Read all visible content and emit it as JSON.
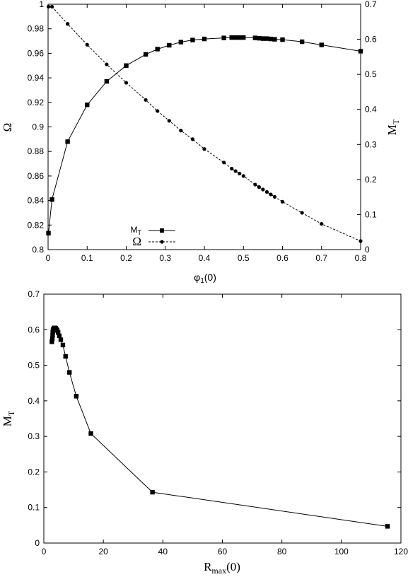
{
  "chart_data": [
    {
      "type": "line",
      "xlabel": "φ",
      "xlabel_sub": "1",
      "xlabel_suffix": "(0)",
      "ylabel": "Ω",
      "y2label": "M",
      "y2label_sub": "T",
      "xlim": [
        0,
        0.8
      ],
      "ylim": [
        0.8,
        1.0
      ],
      "y2lim": [
        0,
        0.7
      ],
      "xticks": [
        "0",
        "0.1",
        "0.2",
        "0.3",
        "0.4",
        "0.5",
        "0.6",
        "0.7",
        "0.8"
      ],
      "yticks": [
        "0.8",
        "0.82",
        "0.84",
        "0.86",
        "0.88",
        "0.9",
        "0.92",
        "0.94",
        "0.96",
        "0.98",
        "1"
      ],
      "y2ticks": [
        "0",
        "0.1",
        "0.2",
        "0.3",
        "0.4",
        "0.5",
        "0.6",
        "0.7"
      ],
      "grid": false,
      "legend_position": "bottom-center",
      "series": [
        {
          "name": "M",
          "name_sub": "T",
          "axis": "right",
          "marker": "square",
          "style": "solid",
          "x": [
            0.001,
            0.01,
            0.05,
            0.1,
            0.15,
            0.2,
            0.25,
            0.28,
            0.31,
            0.34,
            0.37,
            0.4,
            0.45,
            0.47,
            0.48,
            0.49,
            0.5,
            0.53,
            0.54,
            0.55,
            0.56,
            0.57,
            0.58,
            0.6,
            0.65,
            0.7,
            0.8
          ],
          "y": [
            0.047,
            0.143,
            0.308,
            0.413,
            0.48,
            0.525,
            0.557,
            0.572,
            0.583,
            0.592,
            0.598,
            0.601,
            0.604,
            0.605,
            0.605,
            0.605,
            0.605,
            0.604,
            0.603,
            0.602,
            0.602,
            0.601,
            0.6,
            0.599,
            0.593,
            0.584,
            0.566
          ]
        },
        {
          "name": "Ω",
          "axis": "left",
          "marker": "circle",
          "style": "dashed",
          "x": [
            0.001,
            0.01,
            0.05,
            0.1,
            0.15,
            0.2,
            0.25,
            0.28,
            0.31,
            0.34,
            0.37,
            0.4,
            0.45,
            0.47,
            0.48,
            0.49,
            0.5,
            0.53,
            0.54,
            0.55,
            0.56,
            0.57,
            0.58,
            0.6,
            0.65,
            0.7,
            0.8
          ],
          "y": [
            0.998,
            0.998,
            0.984,
            0.967,
            0.951,
            0.936,
            0.922,
            0.913,
            0.905,
            0.897,
            0.89,
            0.882,
            0.871,
            0.866,
            0.864,
            0.862,
            0.86,
            0.853,
            0.851,
            0.849,
            0.847,
            0.845,
            0.843,
            0.839,
            0.83,
            0.821,
            0.807
          ]
        }
      ]
    },
    {
      "type": "line",
      "xlabel": "R",
      "xlabel_sub": "max",
      "xlabel_suffix": "(0)",
      "ylabel": "M",
      "ylabel_sub": "T",
      "xlim": [
        0,
        120
      ],
      "ylim": [
        0,
        0.7
      ],
      "xticks": [
        "0",
        "20",
        "40",
        "60",
        "80",
        "100",
        "120"
      ],
      "yticks": [
        "0",
        "0.1",
        "0.2",
        "0.3",
        "0.4",
        "0.5",
        "0.6",
        "0.7"
      ],
      "grid": false,
      "series": [
        {
          "marker": "square",
          "style": "solid",
          "x": [
            115.5,
            36.5,
            15.8,
            10.9,
            8.6,
            7.3,
            6.4,
            5.7,
            5.2,
            4.8,
            4.5,
            4.2,
            4.0,
            3.8,
            3.6,
            3.5,
            3.4,
            3.3,
            3.2,
            3.1,
            3.0,
            2.95,
            2.85,
            2.7
          ],
          "y": [
            0.047,
            0.143,
            0.308,
            0.413,
            0.48,
            0.525,
            0.557,
            0.572,
            0.583,
            0.592,
            0.598,
            0.601,
            0.604,
            0.605,
            0.605,
            0.604,
            0.603,
            0.602,
            0.601,
            0.599,
            0.593,
            0.584,
            0.575,
            0.566
          ]
        }
      ]
    }
  ]
}
